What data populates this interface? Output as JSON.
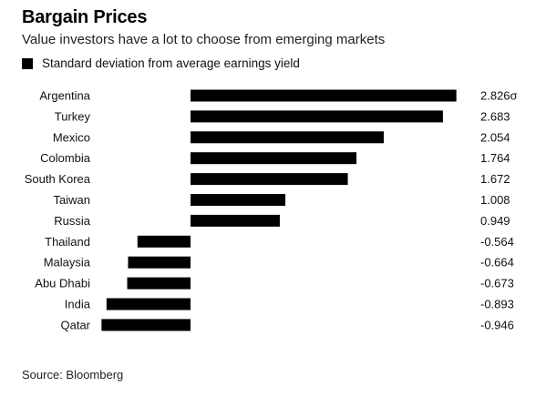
{
  "header": {
    "title": "Bargain Prices",
    "subtitle": "Value investors have a lot to choose from emerging markets"
  },
  "legend": {
    "label": "Standard deviation from average earnings yield"
  },
  "footer": {
    "source": "Source: Bloomberg"
  },
  "chart_data": {
    "type": "bar",
    "orientation": "horizontal",
    "title": "Bargain Prices",
    "subtitle": "Value investors have a lot to choose from emerging markets",
    "categories": [
      "Argentina",
      "Turkey",
      "Mexico",
      "Colombia",
      "South Korea",
      "Taiwan",
      "Russia",
      "Thailand",
      "Malaysia",
      "Abu Dhabi",
      "India",
      "Qatar"
    ],
    "series": [
      {
        "name": "Standard deviation from average earnings yield",
        "values": [
          2.826,
          2.683,
          2.054,
          1.764,
          1.672,
          1.008,
          0.949,
          -0.564,
          -0.664,
          -0.673,
          -0.893,
          -0.946
        ],
        "color": "#000000"
      }
    ],
    "value_labels": [
      "2.826σ",
      "2.683",
      "2.054",
      "1.764",
      "1.672",
      "1.008",
      "0.949",
      "-0.564",
      "-0.664",
      "-0.673",
      "-0.893",
      "-0.946"
    ],
    "xlim": [
      -0.946,
      2.826
    ],
    "grid": false,
    "legend_position": "top-left"
  }
}
